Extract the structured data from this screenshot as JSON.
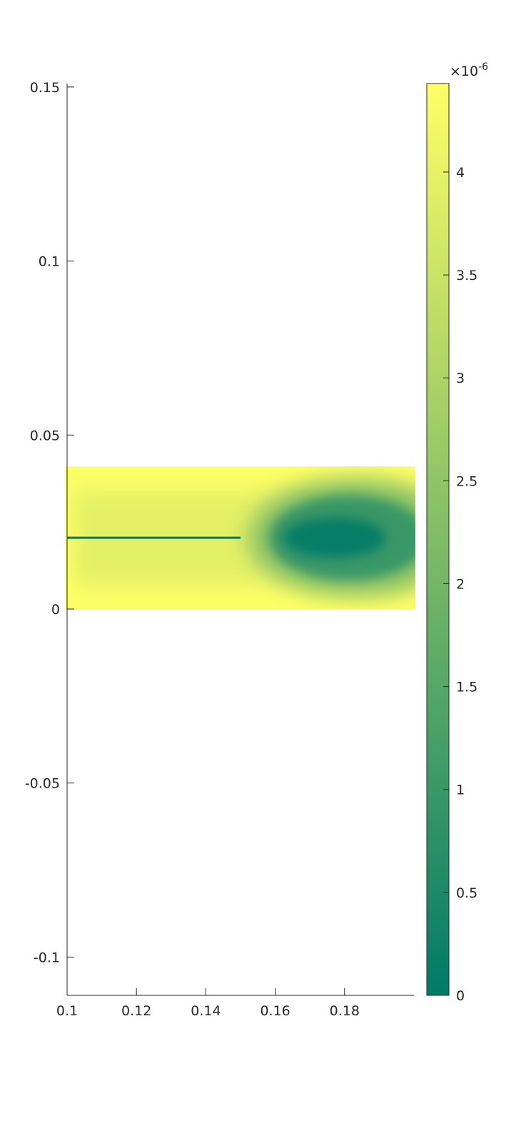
{
  "chart_data": {
    "type": "heatmap",
    "title": "",
    "xlabel": "",
    "ylabel": "",
    "xlim": [
      0.1,
      0.2
    ],
    "ylim": [
      -0.111,
      0.151
    ],
    "x_ticks": [
      0.1,
      0.12,
      0.14,
      0.16,
      0.18
    ],
    "x_tick_labels": [
      "0.1",
      "0.12",
      "0.14",
      "0.16",
      "0.18"
    ],
    "y_ticks": [
      0.15,
      0.1,
      0.05,
      0,
      -0.05,
      -0.1
    ],
    "y_tick_labels": [
      "0.15",
      "0.1",
      "0.05",
      "0",
      "-0.05",
      "-0.1"
    ],
    "data_region": {
      "x": [
        0.1,
        0.2
      ],
      "y": [
        0,
        0.041
      ]
    },
    "field_description_values": {
      "background_level": 3.9e-06,
      "edge_level": 4.4e-06,
      "crack": {
        "y": 0.0205,
        "x_start": 0.1,
        "x_end": 0.15,
        "value": 0
      },
      "low_zone": {
        "x_start": 0.15,
        "x_end": 0.2,
        "y_center": 0.0205,
        "min_value": 0
      }
    },
    "colorbar": {
      "clim": [
        0,
        4.43e-06
      ],
      "ticks": [
        0,
        0.5,
        1,
        1.5,
        2,
        2.5,
        3,
        3.5,
        4
      ],
      "tick_labels": [
        "0",
        "0.5",
        "1",
        "1.5",
        "2",
        "2.5",
        "3",
        "3.5",
        "4"
      ],
      "exponent_prefix": "×10",
      "exponent": "-6",
      "colors": [
        "#007a67",
        "#ffff66"
      ]
    }
  }
}
